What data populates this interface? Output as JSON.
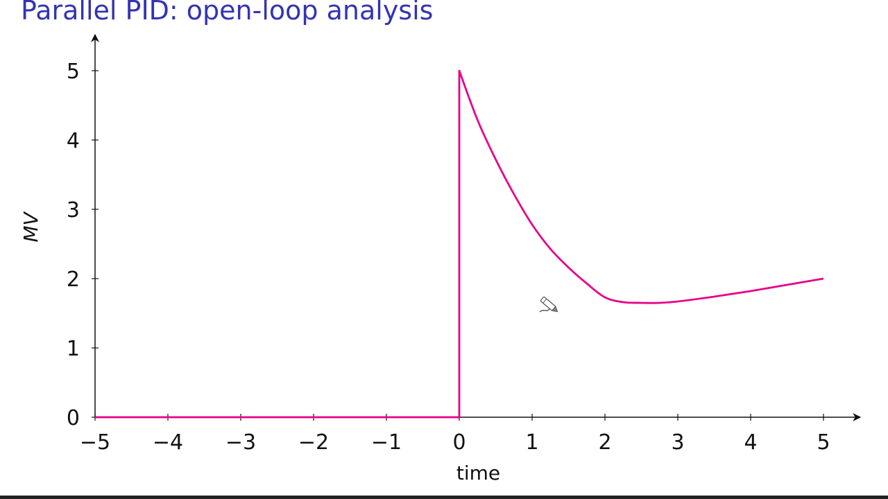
{
  "slide": {
    "title": "Parallel PID: open-loop analysis"
  },
  "chart_data": {
    "type": "line",
    "xlabel": "time",
    "ylabel": "MV",
    "xlim": [
      -5,
      5
    ],
    "ylim": [
      0,
      5
    ],
    "x_ticks": [
      -5,
      -4,
      -3,
      -2,
      -1,
      0,
      1,
      2,
      3,
      4,
      5
    ],
    "y_ticks": [
      0,
      1,
      2,
      3,
      4,
      5
    ],
    "x_tick_labels": [
      "−5",
      "−4",
      "−3",
      "−2",
      "−1",
      "0",
      "1",
      "2",
      "3",
      "4",
      "5"
    ],
    "y_tick_labels": [
      "0",
      "1",
      "2",
      "3",
      "4",
      "5"
    ],
    "grid": false,
    "series": [
      {
        "color": "#e6008a",
        "points": [
          [
            -5,
            0
          ],
          [
            0,
            0
          ],
          [
            0,
            5
          ],
          [
            0.25,
            4.29
          ],
          [
            0.5,
            3.72
          ],
          [
            0.75,
            3.22
          ],
          [
            1.0,
            2.78
          ],
          [
            1.25,
            2.43
          ],
          [
            1.5,
            2.16
          ],
          [
            1.75,
            1.93
          ],
          [
            2.0,
            1.73
          ],
          [
            2.25,
            1.66
          ],
          [
            2.5,
            1.65
          ],
          [
            2.75,
            1.65
          ],
          [
            3.0,
            1.67
          ],
          [
            3.5,
            1.74
          ],
          [
            4.0,
            1.82
          ],
          [
            4.5,
            1.91
          ],
          [
            5.0,
            2.0
          ]
        ]
      }
    ]
  }
}
